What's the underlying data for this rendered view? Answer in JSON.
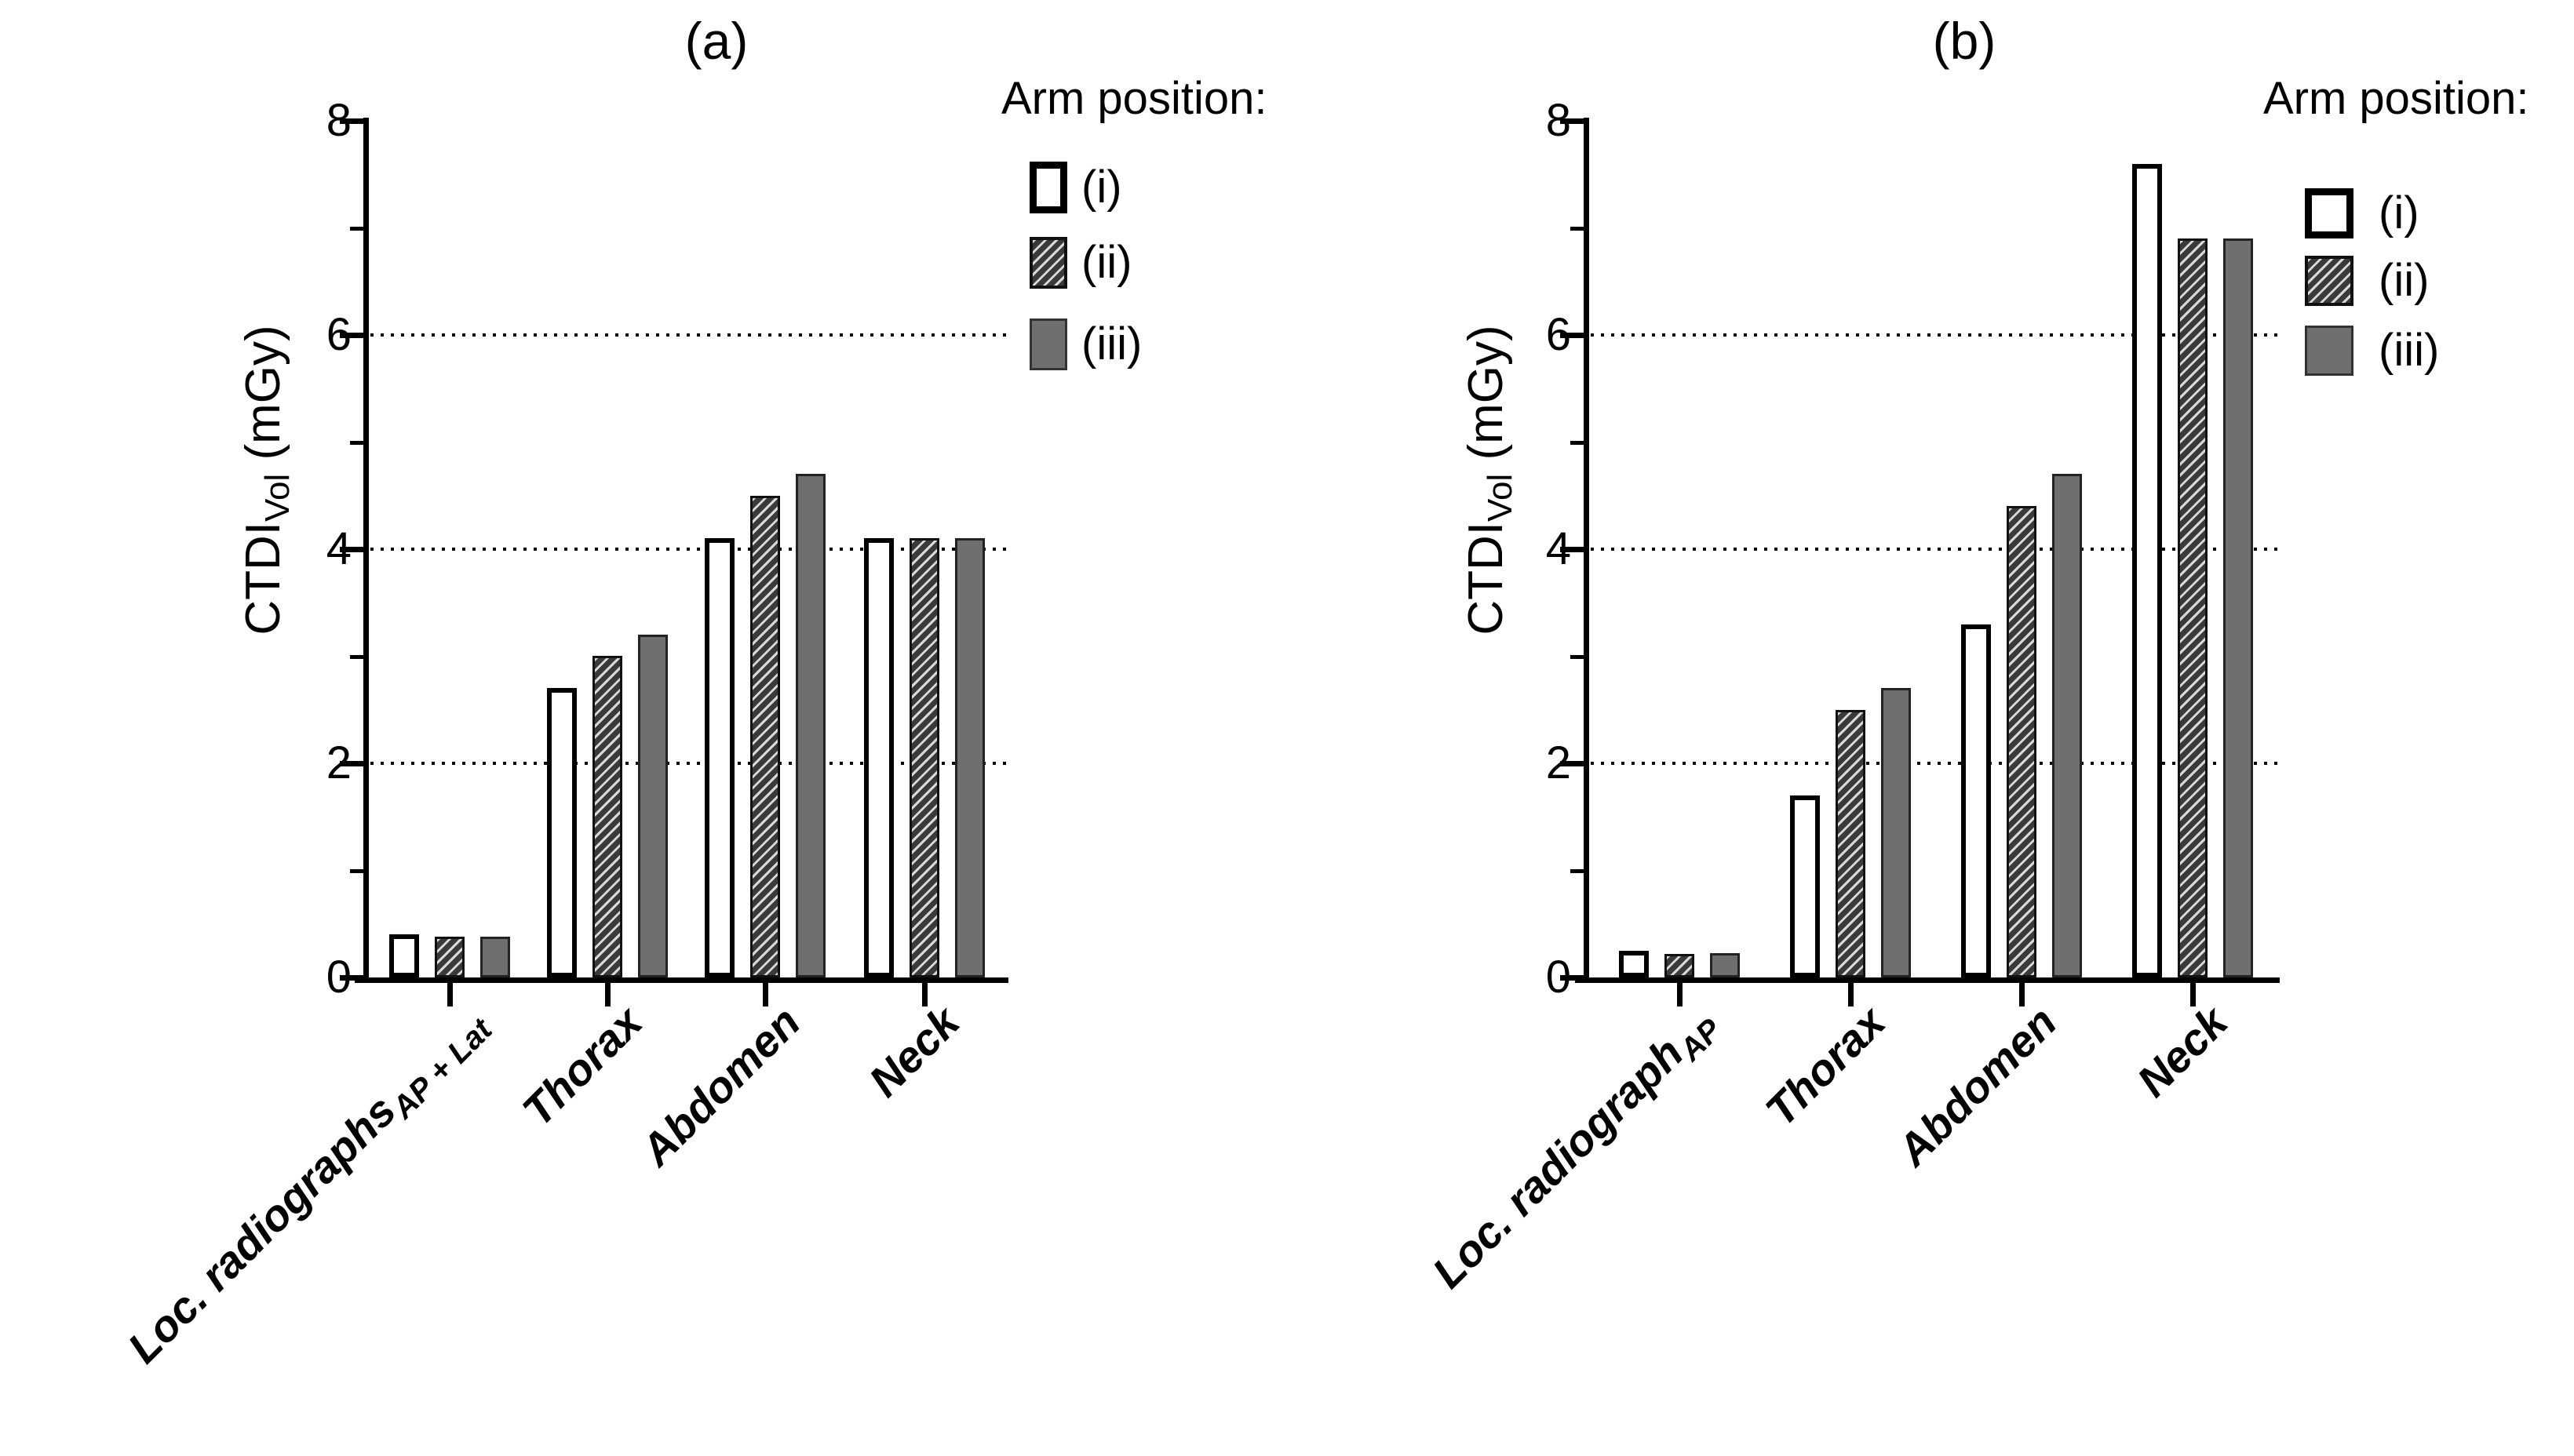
{
  "colors": {
    "background": "#ffffff",
    "axis": "#000000",
    "text": "#000000",
    "bar_open_fill": "#ffffff",
    "bar_outline": "#000000",
    "bar_solid_fill": "#6f6f6f",
    "hatch_dark": "#3a3a3a",
    "hatch_light": "#d9d9d9"
  },
  "chart_data": [
    {
      "type": "bar",
      "panel_label": "(a)",
      "ylabel": {
        "main": "CTDI",
        "sub": "Vol",
        "unit": " (mGy)"
      },
      "ylim": [
        0,
        8
      ],
      "yticks": [
        0,
        2,
        4,
        6,
        8
      ],
      "minor_yticks": [
        1,
        3,
        5,
        7
      ],
      "gridlines": [
        2,
        4,
        6
      ],
      "grid_style": "dotted",
      "legend": {
        "title": "Arm position:",
        "position": "right-top",
        "items": [
          {
            "label": "(i)",
            "style": "open"
          },
          {
            "label": "(ii)",
            "style": "hatched"
          },
          {
            "label": "(iii)",
            "style": "solid"
          }
        ]
      },
      "categories": [
        {
          "text": "Loc. radiographs",
          "sub": "AP + Lat"
        },
        {
          "text": "Thorax",
          "sub": ""
        },
        {
          "text": "Abdomen",
          "sub": ""
        },
        {
          "text": "Neck",
          "sub": ""
        }
      ],
      "series": [
        {
          "name": "(i)",
          "style": "open",
          "values": [
            0.4,
            2.7,
            4.1,
            4.1
          ]
        },
        {
          "name": "(ii)",
          "style": "hatched",
          "values": [
            0.38,
            3.0,
            4.5,
            4.1
          ]
        },
        {
          "name": "(iii)",
          "style": "solid",
          "values": [
            0.38,
            3.2,
            4.7,
            4.1
          ]
        }
      ]
    },
    {
      "type": "bar",
      "panel_label": "(b)",
      "ylabel": {
        "main": "CTDI",
        "sub": "Vol",
        "unit": " (mGy)"
      },
      "ylim": [
        0,
        8
      ],
      "yticks": [
        0,
        2,
        4,
        6,
        8
      ],
      "minor_yticks": [
        1,
        3,
        5,
        7
      ],
      "gridlines": [
        2,
        4,
        6
      ],
      "grid_style": "dotted",
      "legend": {
        "title": "Arm position:",
        "position": "right-top",
        "items": [
          {
            "label": "(i)",
            "style": "open"
          },
          {
            "label": "(ii)",
            "style": "hatched"
          },
          {
            "label": "(iii)",
            "style": "solid"
          }
        ]
      },
      "categories": [
        {
          "text": "Loc. radiograph",
          "sub": "AP"
        },
        {
          "text": "Thorax",
          "sub": ""
        },
        {
          "text": "Abdomen",
          "sub": ""
        },
        {
          "text": "Neck",
          "sub": ""
        }
      ],
      "series": [
        {
          "name": "(i)",
          "style": "open",
          "values": [
            0.25,
            1.7,
            3.3,
            7.6
          ]
        },
        {
          "name": "(ii)",
          "style": "hatched",
          "values": [
            0.22,
            2.5,
            4.4,
            6.9
          ]
        },
        {
          "name": "(iii)",
          "style": "solid",
          "values": [
            0.23,
            2.7,
            4.7,
            6.9
          ]
        }
      ]
    }
  ]
}
